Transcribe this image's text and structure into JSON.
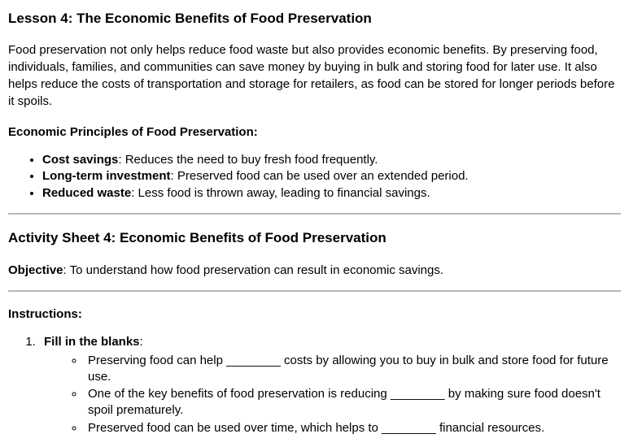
{
  "lesson": {
    "title": "Lesson 4: The Economic Benefits of Food Preservation",
    "intro": "Food preservation not only helps reduce food waste but also provides economic benefits. By preserving food, individuals, families, and communities can save money by buying in bulk and storing food for later use. It also helps reduce the costs of transportation and storage for retailers, as food can be stored for longer periods before it spoils.",
    "principles_heading": "Economic Principles of Food Preservation:",
    "principles": [
      {
        "label": "Cost savings",
        "text": ": Reduces the need to buy fresh food frequently."
      },
      {
        "label": "Long-term investment",
        "text": ": Preserved food can be used over an extended period."
      },
      {
        "label": "Reduced waste",
        "text": ": Less food is thrown away, leading to financial savings."
      }
    ]
  },
  "activity": {
    "title": "Activity Sheet 4: Economic Benefits of Food Preservation",
    "objective_label": "Objective",
    "objective_text": ": To understand how food preservation can result in economic savings.",
    "instructions_heading": "Instructions:",
    "item1_title": "Fill in the blanks",
    "item1_colon": ":",
    "blanks": [
      "Preserving food can help ________ costs by allowing you to buy in bulk and store food for future use.",
      "One of the key benefits of food preservation is reducing ________ by making sure food doesn't spoil prematurely.",
      "Preserved food can be used over time, which helps to ________ financial resources."
    ]
  }
}
